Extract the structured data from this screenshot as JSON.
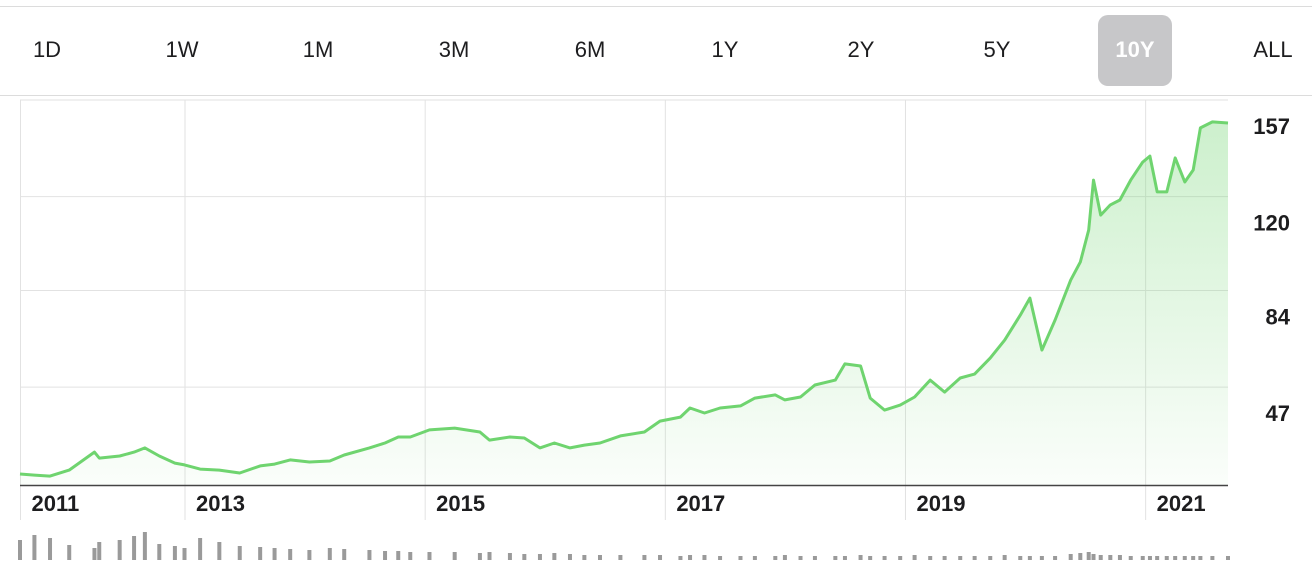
{
  "ranges": [
    "1D",
    "1W",
    "1M",
    "3M",
    "6M",
    "1Y",
    "2Y",
    "5Y",
    "10Y",
    "ALL"
  ],
  "selected_range": "10Y",
  "chart_data": {
    "type": "area",
    "color": "#6fd46f",
    "grid": true,
    "x": [
      2011.63,
      2011.75,
      2011.88,
      2012.04,
      2012.25,
      2012.29,
      2012.46,
      2012.58,
      2012.67,
      2012.79,
      2012.92,
      2013.0,
      2013.13,
      2013.29,
      2013.46,
      2013.63,
      2013.75,
      2013.88,
      2014.04,
      2014.21,
      2014.33,
      2014.54,
      2014.67,
      2014.78,
      2014.88,
      2015.04,
      2015.25,
      2015.46,
      2015.54,
      2015.71,
      2015.83,
      2015.96,
      2016.08,
      2016.21,
      2016.33,
      2016.46,
      2016.63,
      2016.83,
      2016.96,
      2017.13,
      2017.21,
      2017.33,
      2017.46,
      2017.63,
      2017.75,
      2017.92,
      2018.0,
      2018.13,
      2018.25,
      2018.42,
      2018.5,
      2018.63,
      2018.71,
      2018.83,
      2018.96,
      2019.08,
      2019.21,
      2019.33,
      2019.46,
      2019.58,
      2019.71,
      2019.83,
      2019.96,
      2020.04,
      2020.14,
      2020.25,
      2020.38,
      2020.46,
      2020.53,
      2020.57,
      2020.63,
      2020.71,
      2020.79,
      2020.88,
      2020.98,
      2021.04,
      2021.1,
      2021.18,
      2021.25,
      2021.33,
      2021.4,
      2021.46,
      2021.56,
      2021.69
    ],
    "values": [
      13.7,
      13.3,
      12.9,
      15.2,
      22.1,
      19.8,
      20.6,
      22.1,
      23.7,
      20.6,
      17.9,
      17.2,
      15.6,
      15.2,
      14.1,
      16.8,
      17.5,
      19.1,
      18.3,
      18.7,
      21.0,
      23.7,
      25.6,
      27.9,
      27.9,
      30.6,
      31.3,
      29.8,
      26.7,
      27.9,
      27.5,
      23.7,
      25.6,
      23.7,
      24.8,
      25.6,
      28.3,
      29.8,
      34.0,
      35.5,
      39.0,
      37.1,
      39.0,
      39.8,
      42.8,
      44.0,
      42.1,
      43.2,
      47.8,
      49.7,
      55.9,
      55.1,
      42.8,
      38.2,
      40.1,
      43.2,
      49.7,
      45.1,
      50.5,
      52.0,
      58.1,
      65.0,
      74.6,
      81.1,
      61.2,
      72.7,
      88.0,
      94.9,
      107.2,
      126.3,
      112.9,
      116.8,
      118.7,
      126.3,
      133.2,
      135.5,
      121.8,
      121.8,
      134.8,
      125.6,
      130.2,
      146.3,
      148.6,
      148.2
    ],
    "volume": [
      20,
      25,
      22,
      15,
      12,
      18,
      20,
      24,
      28,
      16,
      14,
      12,
      22,
      18,
      14,
      13,
      12,
      11,
      10,
      12,
      11,
      10,
      9,
      9,
      8,
      8,
      8,
      7,
      8,
      7,
      6,
      6,
      7,
      6,
      5,
      5,
      5,
      5,
      5,
      4,
      5,
      5,
      4,
      4,
      4,
      4,
      5,
      4,
      4,
      4,
      4,
      5,
      4,
      4,
      4,
      5,
      4,
      4,
      4,
      4,
      4,
      5,
      4,
      4,
      4,
      4,
      6,
      7,
      8,
      6,
      5,
      5,
      5,
      4,
      4,
      4,
      4,
      4,
      4,
      4,
      4,
      4,
      4,
      4
    ],
    "volume_color": "#9a9a9a",
    "xlim": [
      2011.63,
      2021.69
    ],
    "xticks": [
      2011,
      2013,
      2015,
      2017,
      2019,
      2021
    ],
    "ylim": [
      9.5,
      157
    ],
    "yticks": [
      157,
      120,
      84,
      47
    ]
  }
}
